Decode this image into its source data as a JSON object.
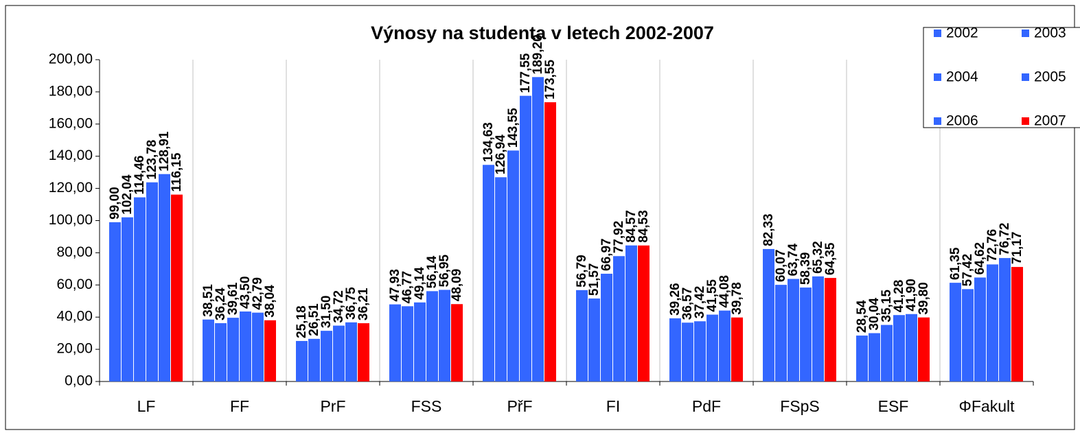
{
  "chart_data": {
    "type": "bar",
    "title": "Výnosy na studenta v letech 2002-2007",
    "categories": [
      "LF",
      "FF",
      "PrF",
      "FSS",
      "PřF",
      "FI",
      "PdF",
      "FSpS",
      "ESF",
      "ΦFakult"
    ],
    "series": [
      {
        "name": "2002",
        "color": "#3366ff",
        "values": [
          99.0,
          38.51,
          25.18,
          47.93,
          134.63,
          56.79,
          39.26,
          82.33,
          28.54,
          61.35
        ],
        "value_labels": [
          "99,00",
          "38,51",
          "25,18",
          "47,93",
          "134,63",
          "56,79",
          "39,26",
          "82,33",
          "28,54",
          "61,35"
        ]
      },
      {
        "name": "2003",
        "color": "#3366ff",
        "values": [
          102.04,
          36.24,
          26.51,
          46.77,
          126.94,
          51.57,
          36.57,
          60.07,
          30.04,
          57.42
        ],
        "value_labels": [
          "102,04",
          "36,24",
          "26,51",
          "46,77",
          "126,94",
          "51,57",
          "36,57",
          "60,07",
          "30,04",
          "57,42"
        ]
      },
      {
        "name": "2004",
        "color": "#3366ff",
        "values": [
          114.46,
          39.61,
          31.5,
          49.14,
          143.55,
          66.97,
          37.42,
          63.74,
          35.15,
          64.62
        ],
        "value_labels": [
          "114,46",
          "39,61",
          "31,50",
          "49,14",
          "143,55",
          "66,97",
          "37,42",
          "63,74",
          "35,15",
          "64,62"
        ]
      },
      {
        "name": "2005",
        "color": "#3366ff",
        "values": [
          123.78,
          43.5,
          34.72,
          56.14,
          177.55,
          77.92,
          41.55,
          58.39,
          41.28,
          72.76
        ],
        "value_labels": [
          "123,78",
          "43,50",
          "34,72",
          "56,14",
          "177,55",
          "77,92",
          "41,55",
          "58,39",
          "41,28",
          "72,76"
        ]
      },
      {
        "name": "2006",
        "color": "#3366ff",
        "values": [
          128.91,
          42.79,
          36.75,
          56.95,
          189.2,
          84.57,
          44.08,
          65.32,
          41.9,
          76.72
        ],
        "value_labels": [
          "128,91",
          "42,79",
          "36,75",
          "56,95",
          "189,20",
          "84,57",
          "44,08",
          "65,32",
          "41,90",
          "76,72"
        ]
      },
      {
        "name": "2007",
        "color": "#ff0000",
        "values": [
          116.15,
          38.04,
          36.21,
          48.09,
          173.55,
          84.53,
          39.78,
          64.35,
          39.8,
          71.17
        ],
        "value_labels": [
          "116,15",
          "38,04",
          "36,21",
          "48,09",
          "173,55",
          "84,53",
          "39,78",
          "64,35",
          "39,80",
          "71,17"
        ]
      }
    ],
    "ylim": [
      0,
      200
    ],
    "yticks": [
      {
        "value": 0,
        "label": "0,00"
      },
      {
        "value": 20,
        "label": "20,00"
      },
      {
        "value": 40,
        "label": "40,00"
      },
      {
        "value": 60,
        "label": "60,00"
      },
      {
        "value": 80,
        "label": "80,00"
      },
      {
        "value": 100,
        "label": "100,00"
      },
      {
        "value": 120,
        "label": "120,00"
      },
      {
        "value": 140,
        "label": "140,00"
      },
      {
        "value": 160,
        "label": "160,00"
      },
      {
        "value": 180,
        "label": "180,00"
      },
      {
        "value": 200,
        "label": "200,00"
      }
    ],
    "grid": true,
    "legend": "top-right"
  }
}
